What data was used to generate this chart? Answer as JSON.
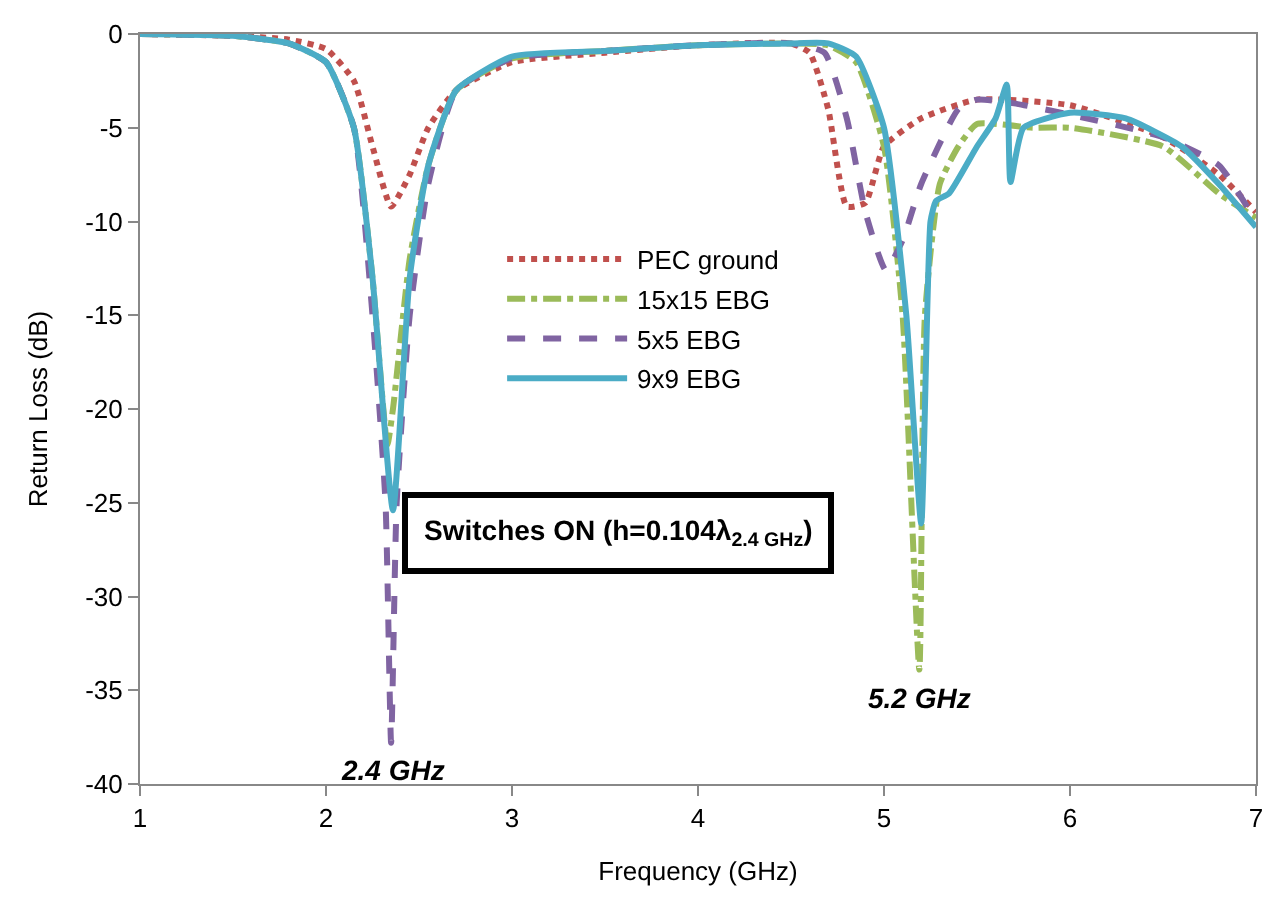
{
  "chart_data": {
    "type": "line",
    "xlabel": "Frequency (GHz)",
    "ylabel": "Return Loss (dB)",
    "xlim": [
      1,
      7
    ],
    "xticks": [
      1,
      2,
      3,
      4,
      5,
      6,
      7
    ],
    "ylim": [
      -40,
      0
    ],
    "yticks": [
      -40,
      -35,
      -30,
      -25,
      -20,
      -15,
      -10,
      -5,
      0
    ],
    "legend": "top left",
    "marker": "none",
    "series": [
      {
        "name": "PEC ground",
        "color": "#c0504d",
        "line_style": "dotted",
        "x": [
          1,
          1.5,
          1.8,
          2.0,
          2.15,
          2.25,
          2.35,
          2.45,
          2.55,
          2.7,
          3.0,
          3.5,
          4.0,
          4.5,
          4.6,
          4.7,
          4.8,
          4.9,
          5.0,
          5.2,
          5.5,
          6.0,
          6.5,
          6.8,
          7
        ],
        "values": [
          0,
          -0.1,
          -0.3,
          -0.8,
          -2.5,
          -6,
          -9.2,
          -7.5,
          -5,
          -3,
          -1.5,
          -1,
          -0.6,
          -0.5,
          -1,
          -4,
          -9.2,
          -9.0,
          -6,
          -4.5,
          -3.5,
          -3.8,
          -5.5,
          -7.5,
          -9.5
        ]
      },
      {
        "name": "15x15 EBG",
        "color": "#9bbb59",
        "line_style": "dashdot",
        "x": [
          1,
          1.5,
          1.8,
          2.0,
          2.15,
          2.25,
          2.33,
          2.36,
          2.45,
          2.55,
          2.7,
          3.0,
          3.5,
          4.0,
          4.5,
          4.7,
          4.85,
          5.0,
          5.1,
          5.19,
          5.22,
          5.3,
          5.4,
          5.5,
          5.8,
          6.0,
          6.5,
          6.8,
          7
        ],
        "values": [
          0,
          -0.1,
          -0.5,
          -1.5,
          -5,
          -13,
          -21.9,
          -20,
          -12,
          -7,
          -3,
          -1.3,
          -0.9,
          -0.6,
          -0.5,
          -0.6,
          -1.5,
          -6,
          -15,
          -33.9,
          -15,
          -8,
          -6,
          -4.8,
          -5,
          -5,
          -6,
          -8.5,
          -9.8
        ]
      },
      {
        "name": "5x5 EBG",
        "color": "#8064a2",
        "line_style": "dashed",
        "x": [
          1,
          1.5,
          1.8,
          2.0,
          2.15,
          2.25,
          2.32,
          2.35,
          2.38,
          2.45,
          2.55,
          2.7,
          3.0,
          3.5,
          4.0,
          4.5,
          4.68,
          4.8,
          4.9,
          5.01,
          5.1,
          5.2,
          5.4,
          5.5,
          5.7,
          6.0,
          6.5,
          6.8,
          7
        ],
        "values": [
          0,
          -0.1,
          -0.5,
          -1.5,
          -5,
          -15,
          -25,
          -37.8,
          -25,
          -15,
          -8,
          -3,
          -1.3,
          -0.9,
          -0.6,
          -0.5,
          -1,
          -4.5,
          -9.5,
          -12.6,
          -11,
          -8,
          -4,
          -3.5,
          -3.7,
          -4.3,
          -5.5,
          -7,
          -10
        ]
      },
      {
        "name": "9x9 EBG",
        "color": "#4bacc6",
        "line_style": "solid",
        "x": [
          1,
          1.5,
          1.8,
          2.0,
          2.15,
          2.25,
          2.36,
          2.45,
          2.55,
          2.7,
          3.0,
          3.5,
          4.0,
          4.5,
          4.7,
          4.85,
          5.0,
          5.12,
          5.2,
          5.25,
          5.28,
          5.35,
          5.5,
          5.6,
          5.66,
          5.68,
          5.75,
          6.0,
          6.3,
          6.6,
          6.8,
          7
        ],
        "values": [
          0,
          -0.1,
          -0.5,
          -1.5,
          -5,
          -13,
          -25.4,
          -13,
          -7,
          -3,
          -1.2,
          -0.9,
          -0.6,
          -0.5,
          -0.5,
          -1.2,
          -5,
          -15,
          -26.1,
          -10,
          -8.9,
          -8.5,
          -6,
          -4.5,
          -2.7,
          -7.9,
          -5,
          -4.2,
          -4.5,
          -6,
          -8,
          -10.3
        ]
      }
    ],
    "annotations": [
      "Switches ON (h=0.104λ$_{2.4 GHz}$)",
      {
        "text": "2.4 GHz",
        "x": 2.35,
        "y": -37.8
      },
      {
        "text": "5.2 GHz",
        "x": 5.19,
        "y": -33.9
      }
    ]
  }
}
